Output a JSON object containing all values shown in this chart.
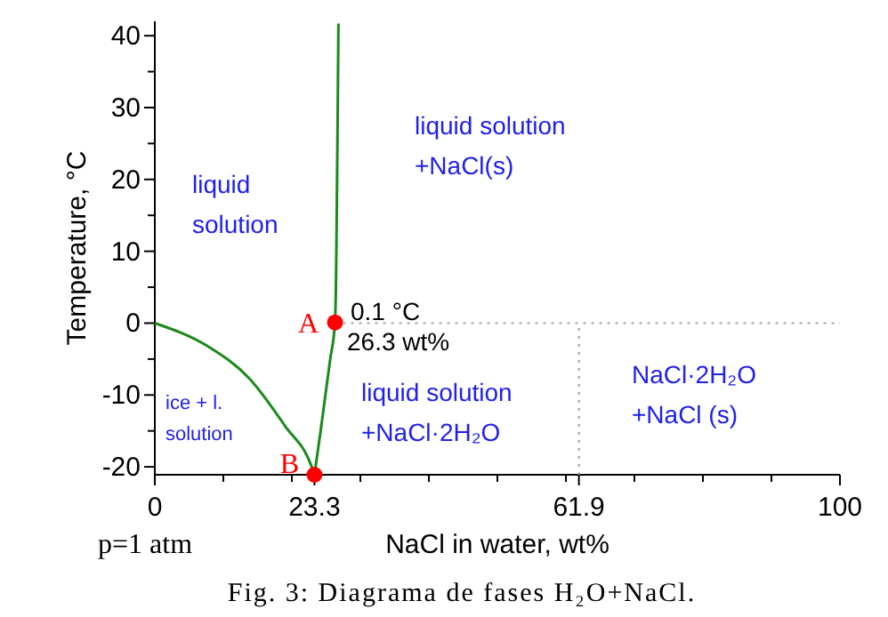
{
  "chart_data": {
    "type": "line",
    "title": "Fig. 3: Diagrama de fases H₂O+NaCl.",
    "xlabel": "NaCl in water, wt%",
    "ylabel": "Temperature, °C",
    "xlim": [
      0,
      100
    ],
    "ylim": [
      -21.1,
      42
    ],
    "xticks": [
      0,
      {
        "value": 10,
        "label": null
      },
      {
        "value": 20,
        "label": null
      },
      {
        "value": 23.3,
        "label": "23.3"
      },
      {
        "value": 30,
        "label": null
      },
      {
        "value": 40,
        "label": null
      },
      {
        "value": 50,
        "label": null
      },
      {
        "value": 60,
        "label": null
      },
      {
        "value": 61.9,
        "label": "61.9"
      },
      {
        "value": 70,
        "label": null
      },
      {
        "value": 80,
        "label": null
      },
      {
        "value": 90,
        "label": null
      },
      100
    ],
    "yticks": [
      -20,
      {
        "value": -15,
        "label": null
      },
      -10,
      {
        "value": -5,
        "label": null
      },
      0,
      {
        "value": 5,
        "label": null
      },
      10,
      {
        "value": 15,
        "label": null
      },
      20,
      {
        "value": 25,
        "label": null
      },
      30,
      {
        "value": 35,
        "label": null
      },
      40
    ],
    "grid": false,
    "marker": "none",
    "series": [
      {
        "color": "#1a8a1a",
        "x": [
          0,
          7.7,
          13.8,
          19,
          22.9,
          23.3
        ],
        "values": [
          0,
          -3.2,
          -7.7,
          -14.3,
          -20,
          -21.1
        ]
      },
      {
        "color": "#1a8a1a",
        "x": [
          23.3,
          24.2,
          24.9,
          25.6,
          26.3,
          26.5,
          26.6,
          26.7,
          26.8
        ],
        "values": [
          -21.1,
          -15,
          -10,
          -5,
          0.1,
          10,
          20,
          30,
          41.7
        ]
      },
      {
        "type": "line",
        "color": "#a0a0a0",
        "line_style": "dotted",
        "x": [
          26.3,
          100
        ],
        "values": [
          0,
          0
        ]
      },
      {
        "type": "line",
        "color": "#a0a0a0",
        "line_style": "dotted",
        "x": [
          61.9,
          61.9
        ],
        "values": [
          -21.1,
          0
        ]
      },
      {
        "type": "scatter",
        "color": "#ff0000",
        "marker": "circle",
        "x": [
          23.3,
          26.3
        ],
        "values": [
          -21.1,
          0.1
        ]
      }
    ],
    "annotations": [
      "A",
      "B",
      "0.1 °C",
      "26.3 wt%",
      "liquid\nsolution",
      "liquid solution\n+NaCl(s)",
      "ice + l.\nsolution",
      "liquid solution\n+NaCl·2H₂O",
      "NaCl·2H₂O\n+NaCl (s)",
      "p=1 atm"
    ]
  }
}
